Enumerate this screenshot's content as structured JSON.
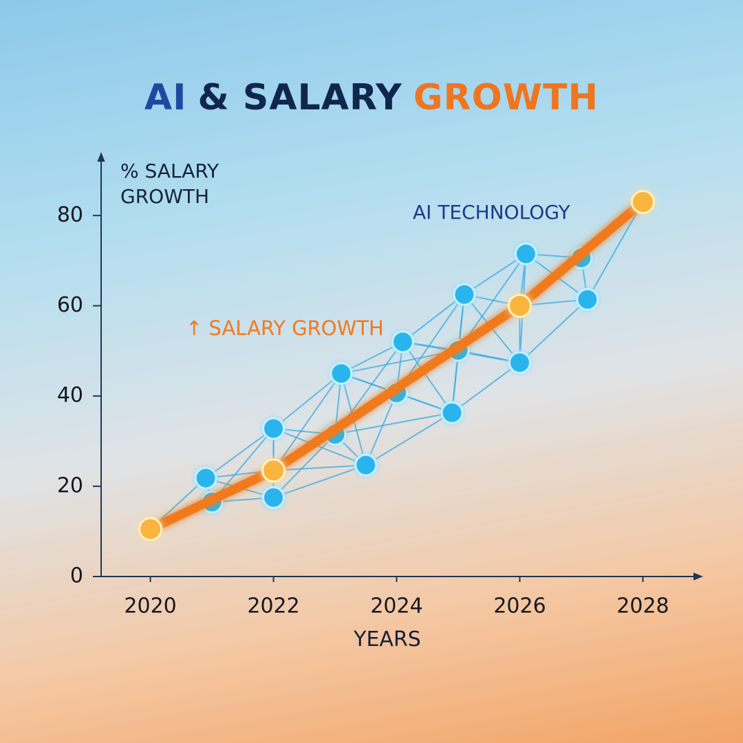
{
  "chart_data": {
    "type": "line",
    "title": [
      {
        "text": "AI",
        "color": "#1d4aa0"
      },
      {
        "text": "& SALARY",
        "color": "#10264f"
      },
      {
        "text": "GROWTH",
        "color": "#ef7620"
      }
    ],
    "y_label": "% SALARY GROWTH",
    "x_label": "YEARS",
    "xlim": [
      2019.2,
      2028.9
    ],
    "xticks": [
      2020,
      2022,
      2024,
      2026,
      2028
    ],
    "ylim": [
      0,
      93
    ],
    "yticks": [
      0,
      20,
      40,
      60,
      80
    ],
    "grid": false,
    "series": [
      {
        "name": "↑ SALARY GROWTH",
        "color": "#f07a1e",
        "type": "line",
        "x": [
          2020,
          2022,
          2026,
          2028
        ],
        "values": [
          10.5,
          23.5,
          60,
          83
        ]
      },
      {
        "name": "AI TECHNOLOGY",
        "color": "#2bb4ee",
        "type": "scatter",
        "x": [
          2020.9,
          2021.0,
          2022.0,
          2022.0,
          2023.0,
          2023.1,
          2023.5,
          2024.0,
          2024.1,
          2024.9,
          2025.0,
          2025.1,
          2026.0,
          2026.1,
          2027.0,
          2027.1
        ],
        "values": [
          21.8,
          16.5,
          32.8,
          17.5,
          31.5,
          45,
          24.7,
          40.7,
          52,
          36.3,
          50.1,
          62.5,
          47.4,
          71.5,
          70.6,
          61.4
        ]
      }
    ]
  }
}
